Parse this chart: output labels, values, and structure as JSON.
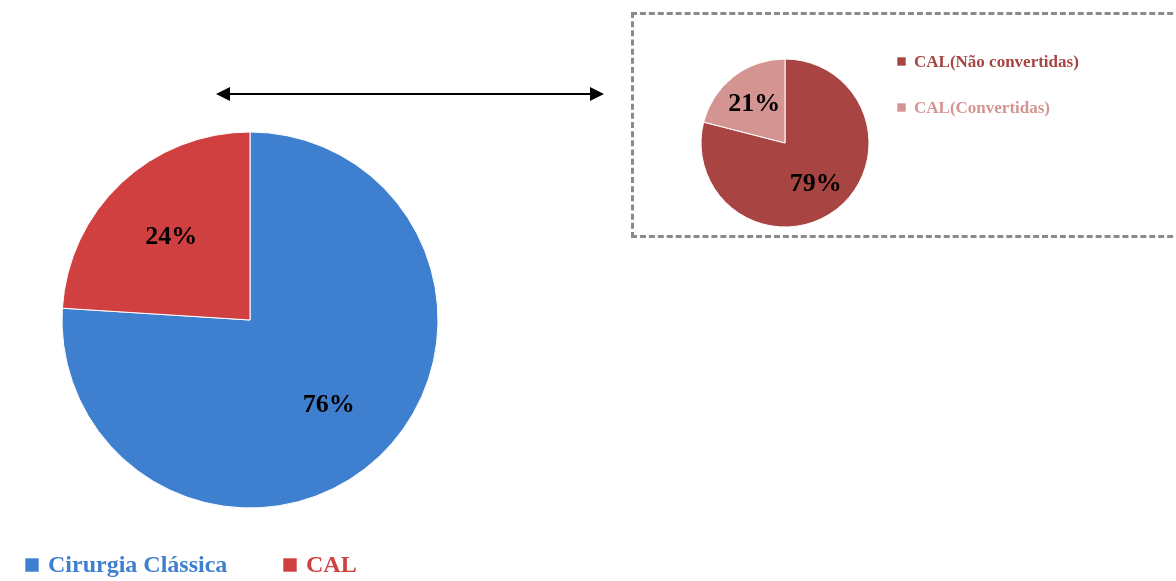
{
  "chart_data": [
    {
      "type": "pie",
      "categories": [
        "Cirurgia Clássica",
        "CAL"
      ],
      "values": [
        76,
        24
      ],
      "colors": [
        "#3f7fcf",
        "#d04040"
      ],
      "value_labels": [
        "76%",
        "24%"
      ],
      "legend": "bottom"
    },
    {
      "type": "pie",
      "categories": [
        "CAL(Não convertidas)",
        "CAL(Convertidas)"
      ],
      "values": [
        79,
        21
      ],
      "colors": [
        "#a84442",
        "#d49492"
      ],
      "value_labels": [
        "79%",
        "21%"
      ],
      "legend": "right"
    }
  ]
}
